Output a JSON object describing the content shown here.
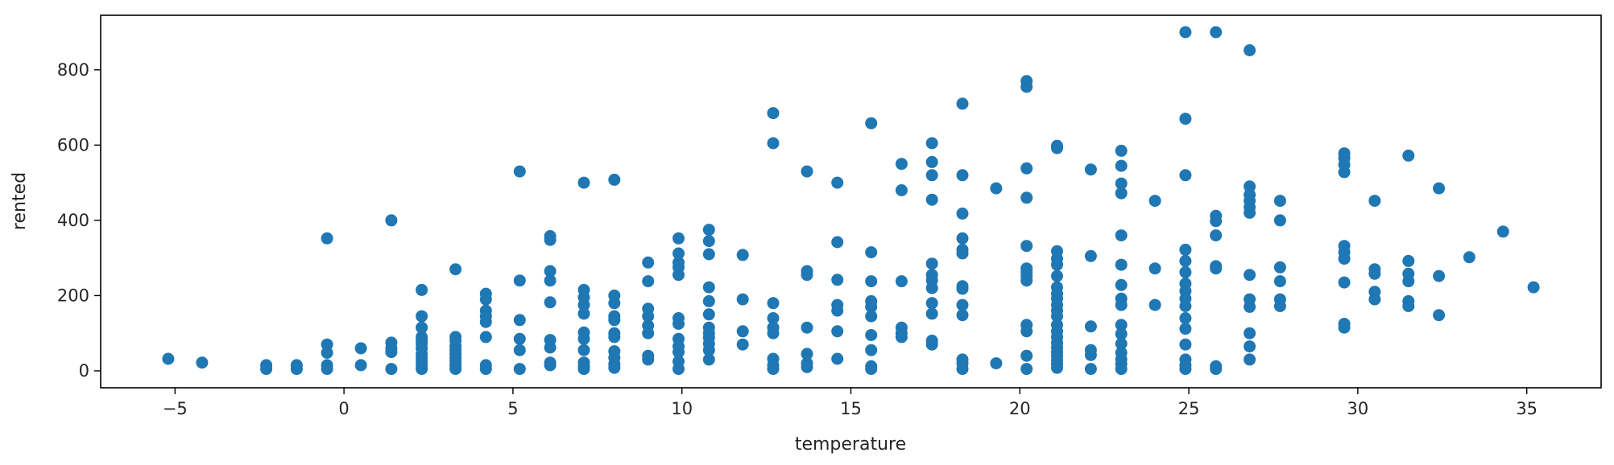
{
  "chart_data": {
    "type": "scatter",
    "xlabel": "temperature",
    "ylabel": "rented",
    "xlim": [
      -7.2,
      37.2
    ],
    "ylim": [
      -45,
      945
    ],
    "x_ticks": [
      -5,
      0,
      5,
      10,
      15,
      20,
      25,
      30,
      35
    ],
    "y_ticks": [
      0,
      200,
      400,
      600,
      800
    ],
    "grid": false,
    "legend": "none",
    "marker_color": "#1f77b4",
    "points": [
      [
        -5.2,
        32
      ],
      [
        -4.2,
        22
      ],
      [
        -2.3,
        15
      ],
      [
        -2.3,
        5
      ],
      [
        -1.4,
        15
      ],
      [
        -1.4,
        5
      ],
      [
        -0.5,
        352
      ],
      [
        -0.5,
        70
      ],
      [
        -0.5,
        48
      ],
      [
        -0.5,
        15
      ],
      [
        -0.5,
        5
      ],
      [
        0.5,
        60
      ],
      [
        0.5,
        15
      ],
      [
        1.4,
        400
      ],
      [
        1.4,
        75
      ],
      [
        1.4,
        60
      ],
      [
        1.4,
        50
      ],
      [
        1.4,
        5
      ],
      [
        2.3,
        215
      ],
      [
        2.3,
        145
      ],
      [
        2.3,
        115
      ],
      [
        2.3,
        90
      ],
      [
        2.3,
        80
      ],
      [
        2.3,
        72
      ],
      [
        2.3,
        60
      ],
      [
        2.3,
        45
      ],
      [
        2.3,
        35
      ],
      [
        2.3,
        25
      ],
      [
        2.3,
        15
      ],
      [
        2.3,
        5
      ],
      [
        3.3,
        270
      ],
      [
        3.3,
        90
      ],
      [
        3.3,
        80
      ],
      [
        3.3,
        65
      ],
      [
        3.3,
        55
      ],
      [
        3.3,
        45
      ],
      [
        3.3,
        35
      ],
      [
        3.3,
        25
      ],
      [
        3.3,
        15
      ],
      [
        3.3,
        5
      ],
      [
        4.2,
        205
      ],
      [
        4.2,
        190
      ],
      [
        4.2,
        160
      ],
      [
        4.2,
        145
      ],
      [
        4.2,
        130
      ],
      [
        4.2,
        90
      ],
      [
        4.2,
        15
      ],
      [
        4.2,
        5
      ],
      [
        5.2,
        530
      ],
      [
        5.2,
        240
      ],
      [
        5.2,
        135
      ],
      [
        5.2,
        85
      ],
      [
        5.2,
        55
      ],
      [
        5.2,
        5
      ],
      [
        6.1,
        358
      ],
      [
        6.1,
        348
      ],
      [
        6.1,
        265
      ],
      [
        6.1,
        240
      ],
      [
        6.1,
        182
      ],
      [
        6.1,
        82
      ],
      [
        6.1,
        62
      ],
      [
        6.1,
        22
      ],
      [
        6.1,
        15
      ],
      [
        7.1,
        500
      ],
      [
        7.1,
        215
      ],
      [
        7.1,
        195
      ],
      [
        7.1,
        175
      ],
      [
        7.1,
        152
      ],
      [
        7.1,
        102
      ],
      [
        7.1,
        85
      ],
      [
        7.1,
        55
      ],
      [
        7.1,
        22
      ],
      [
        7.1,
        12
      ],
      [
        7.1,
        5
      ],
      [
        8.0,
        508
      ],
      [
        8.0,
        200
      ],
      [
        8.0,
        180
      ],
      [
        8.0,
        145
      ],
      [
        8.0,
        135
      ],
      [
        8.0,
        100
      ],
      [
        8.0,
        90
      ],
      [
        8.0,
        52
      ],
      [
        8.0,
        35
      ],
      [
        8.0,
        18
      ],
      [
        8.0,
        8
      ],
      [
        9.0,
        288
      ],
      [
        9.0,
        238
      ],
      [
        9.0,
        165
      ],
      [
        9.0,
        145
      ],
      [
        9.0,
        120
      ],
      [
        9.0,
        100
      ],
      [
        9.0,
        40
      ],
      [
        9.0,
        30
      ],
      [
        9.9,
        352
      ],
      [
        9.9,
        312
      ],
      [
        9.9,
        288
      ],
      [
        9.9,
        275
      ],
      [
        9.9,
        255
      ],
      [
        9.9,
        140
      ],
      [
        9.9,
        125
      ],
      [
        9.9,
        85
      ],
      [
        9.9,
        65
      ],
      [
        9.9,
        50
      ],
      [
        9.9,
        25
      ],
      [
        9.9,
        5
      ],
      [
        10.8,
        375
      ],
      [
        10.8,
        345
      ],
      [
        10.8,
        310
      ],
      [
        10.8,
        222
      ],
      [
        10.8,
        185
      ],
      [
        10.8,
        150
      ],
      [
        10.8,
        115
      ],
      [
        10.8,
        100
      ],
      [
        10.8,
        88
      ],
      [
        10.8,
        72
      ],
      [
        10.8,
        55
      ],
      [
        10.8,
        30
      ],
      [
        11.8,
        308
      ],
      [
        11.8,
        190
      ],
      [
        11.8,
        105
      ],
      [
        11.8,
        70
      ],
      [
        12.7,
        685
      ],
      [
        12.7,
        605
      ],
      [
        12.7,
        180
      ],
      [
        12.7,
        140
      ],
      [
        12.7,
        115
      ],
      [
        12.7,
        100
      ],
      [
        12.7,
        32
      ],
      [
        12.7,
        15
      ],
      [
        12.7,
        5
      ],
      [
        13.7,
        530
      ],
      [
        13.7,
        265
      ],
      [
        13.7,
        255
      ],
      [
        13.7,
        115
      ],
      [
        13.7,
        45
      ],
      [
        13.7,
        20
      ],
      [
        13.7,
        10
      ],
      [
        14.6,
        500
      ],
      [
        14.6,
        342
      ],
      [
        14.6,
        242
      ],
      [
        14.6,
        175
      ],
      [
        14.6,
        160
      ],
      [
        14.6,
        105
      ],
      [
        14.6,
        32
      ],
      [
        15.6,
        658
      ],
      [
        15.6,
        315
      ],
      [
        15.6,
        238
      ],
      [
        15.6,
        185
      ],
      [
        15.6,
        170
      ],
      [
        15.6,
        145
      ],
      [
        15.6,
        95
      ],
      [
        15.6,
        55
      ],
      [
        15.6,
        12
      ],
      [
        15.6,
        5
      ],
      [
        16.5,
        550
      ],
      [
        16.5,
        480
      ],
      [
        16.5,
        238
      ],
      [
        16.5,
        115
      ],
      [
        16.5,
        100
      ],
      [
        16.5,
        90
      ],
      [
        17.4,
        605
      ],
      [
        17.4,
        555
      ],
      [
        17.4,
        520
      ],
      [
        17.4,
        455
      ],
      [
        17.4,
        285
      ],
      [
        17.4,
        255
      ],
      [
        17.4,
        240
      ],
      [
        17.4,
        220
      ],
      [
        17.4,
        180
      ],
      [
        17.4,
        152
      ],
      [
        17.4,
        80
      ],
      [
        17.4,
        70
      ],
      [
        18.3,
        710
      ],
      [
        18.3,
        520
      ],
      [
        18.3,
        418
      ],
      [
        18.3,
        352
      ],
      [
        18.3,
        322
      ],
      [
        18.3,
        312
      ],
      [
        18.3,
        225
      ],
      [
        18.3,
        218
      ],
      [
        18.3,
        175
      ],
      [
        18.3,
        148
      ],
      [
        18.3,
        30
      ],
      [
        18.3,
        20
      ],
      [
        18.3,
        5
      ],
      [
        19.3,
        485
      ],
      [
        19.3,
        20
      ],
      [
        20.2,
        770
      ],
      [
        20.2,
        755
      ],
      [
        20.2,
        538
      ],
      [
        20.2,
        460
      ],
      [
        20.2,
        332
      ],
      [
        20.2,
        272
      ],
      [
        20.2,
        262
      ],
      [
        20.2,
        252
      ],
      [
        20.2,
        240
      ],
      [
        20.2,
        122
      ],
      [
        20.2,
        105
      ],
      [
        20.2,
        40
      ],
      [
        20.2,
        5
      ],
      [
        21.1,
        598
      ],
      [
        21.1,
        592
      ],
      [
        21.1,
        318
      ],
      [
        21.1,
        298
      ],
      [
        21.1,
        282
      ],
      [
        21.1,
        252
      ],
      [
        21.1,
        222
      ],
      [
        21.1,
        205
      ],
      [
        21.1,
        192
      ],
      [
        21.1,
        175
      ],
      [
        21.1,
        160
      ],
      [
        21.1,
        145
      ],
      [
        21.1,
        122
      ],
      [
        21.1,
        105
      ],
      [
        21.1,
        90
      ],
      [
        21.1,
        75
      ],
      [
        21.1,
        62
      ],
      [
        21.1,
        50
      ],
      [
        21.1,
        40
      ],
      [
        21.1,
        28
      ],
      [
        21.1,
        18
      ],
      [
        21.1,
        8
      ],
      [
        22.1,
        535
      ],
      [
        22.1,
        305
      ],
      [
        22.1,
        118
      ],
      [
        22.1,
        55
      ],
      [
        22.1,
        42
      ],
      [
        22.1,
        5
      ],
      [
        23.0,
        585
      ],
      [
        23.0,
        545
      ],
      [
        23.0,
        498
      ],
      [
        23.0,
        472
      ],
      [
        23.0,
        360
      ],
      [
        23.0,
        282
      ],
      [
        23.0,
        228
      ],
      [
        23.0,
        192
      ],
      [
        23.0,
        175
      ],
      [
        23.0,
        122
      ],
      [
        23.0,
        98
      ],
      [
        23.0,
        72
      ],
      [
        23.0,
        48
      ],
      [
        23.0,
        30
      ],
      [
        23.0,
        18
      ],
      [
        23.0,
        5
      ],
      [
        24.0,
        452
      ],
      [
        24.0,
        272
      ],
      [
        24.0,
        175
      ],
      [
        24.9,
        900
      ],
      [
        24.9,
        670
      ],
      [
        24.9,
        520
      ],
      [
        24.9,
        322
      ],
      [
        24.9,
        292
      ],
      [
        24.9,
        262
      ],
      [
        24.9,
        232
      ],
      [
        24.9,
        212
      ],
      [
        24.9,
        192
      ],
      [
        24.9,
        172
      ],
      [
        24.9,
        140
      ],
      [
        24.9,
        112
      ],
      [
        24.9,
        70
      ],
      [
        24.9,
        30
      ],
      [
        24.9,
        15
      ],
      [
        24.9,
        5
      ],
      [
        25.8,
        900
      ],
      [
        25.8,
        412
      ],
      [
        25.8,
        398
      ],
      [
        25.8,
        360
      ],
      [
        25.8,
        278
      ],
      [
        25.8,
        272
      ],
      [
        25.8,
        12
      ],
      [
        25.8,
        5
      ],
      [
        26.8,
        852
      ],
      [
        26.8,
        490
      ],
      [
        26.8,
        468
      ],
      [
        26.8,
        452
      ],
      [
        26.8,
        435
      ],
      [
        26.8,
        420
      ],
      [
        26.8,
        255
      ],
      [
        26.8,
        190
      ],
      [
        26.8,
        170
      ],
      [
        26.8,
        100
      ],
      [
        26.8,
        65
      ],
      [
        26.8,
        30
      ],
      [
        27.7,
        452
      ],
      [
        27.7,
        400
      ],
      [
        27.7,
        275
      ],
      [
        27.7,
        238
      ],
      [
        27.7,
        190
      ],
      [
        27.7,
        172
      ],
      [
        29.6,
        578
      ],
      [
        29.6,
        565
      ],
      [
        29.6,
        548
      ],
      [
        29.6,
        528
      ],
      [
        29.6,
        332
      ],
      [
        29.6,
        315
      ],
      [
        29.6,
        298
      ],
      [
        29.6,
        235
      ],
      [
        29.6,
        125
      ],
      [
        29.6,
        115
      ],
      [
        30.5,
        452
      ],
      [
        30.5,
        270
      ],
      [
        30.5,
        258
      ],
      [
        30.5,
        210
      ],
      [
        30.5,
        190
      ],
      [
        31.5,
        572
      ],
      [
        31.5,
        292
      ],
      [
        31.5,
        258
      ],
      [
        31.5,
        238
      ],
      [
        31.5,
        185
      ],
      [
        31.5,
        172
      ],
      [
        32.4,
        485
      ],
      [
        32.4,
        252
      ],
      [
        32.4,
        148
      ],
      [
        33.3,
        302
      ],
      [
        34.3,
        370
      ],
      [
        35.2,
        222
      ]
    ]
  }
}
